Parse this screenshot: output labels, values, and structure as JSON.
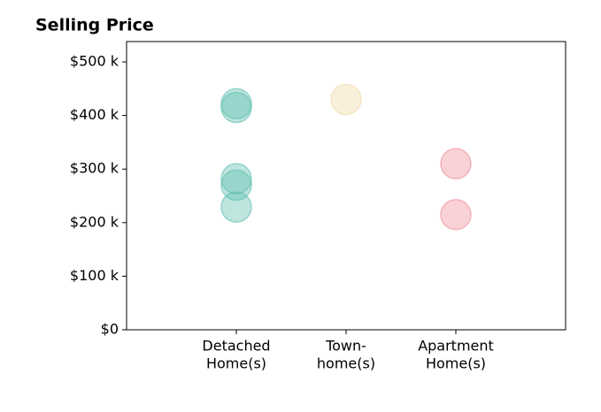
{
  "chart_data": {
    "type": "strip",
    "title": "Selling Price",
    "categories": [
      [
        "Detached",
        "Home(s)"
      ],
      [
        "Town-",
        "home(s)"
      ],
      [
        "Apartment",
        "Home(s)"
      ]
    ],
    "values": [
      [
        422000,
        415000,
        282000,
        270000,
        229000
      ],
      [
        430000
      ],
      [
        310000,
        215000
      ]
    ],
    "colors": [
      "#5fbfb0",
      "#f0d9a8",
      "#ef8f9a"
    ],
    "opacity": 0.4,
    "ylim": [
      0,
      538000
    ],
    "yticks": [
      {
        "value": 0,
        "label": "$0"
      },
      {
        "value": 100000,
        "label": "$100 k"
      },
      {
        "value": 200000,
        "label": "$200 k"
      },
      {
        "value": 300000,
        "label": "$300 k"
      },
      {
        "value": 400000,
        "label": "$400 k"
      },
      {
        "value": 500000,
        "label": "$500 k"
      }
    ]
  }
}
